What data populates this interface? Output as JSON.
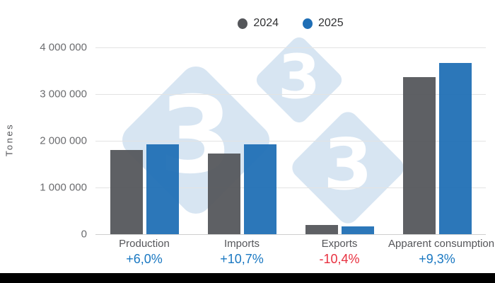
{
  "page": {
    "background": "#ffffff",
    "footer_bar_color": "#000000"
  },
  "watermark": {
    "text": "3",
    "color": "#D7E5F2"
  },
  "y_axis": {
    "label": "Tones",
    "ticks": [
      "4 000 000",
      "3 000 000",
      "2 000 000",
      "1 000 000",
      "0"
    ],
    "max": 4000000
  },
  "chart_data": {
    "type": "bar",
    "title": "",
    "xlabel": "",
    "ylabel": "Tones",
    "ylim": [
      0,
      4000000
    ],
    "grid": true,
    "legend_position": "top-center",
    "categories": [
      "Production",
      "Imports",
      "Exports",
      "Apparent consumption"
    ],
    "series": [
      {
        "name": "2024",
        "color": "#54565A",
        "values": [
          1810000,
          1735000,
          193000,
          3360000
        ]
      },
      {
        "name": "2025",
        "color": "#1F6EB5",
        "values": [
          1920000,
          1920000,
          173000,
          3672000
        ]
      }
    ],
    "change_labels": [
      {
        "text": "+6,0%",
        "color": "#1A78C2"
      },
      {
        "text": "+10,7%",
        "color": "#1A78C2"
      },
      {
        "text": "-10,4%",
        "color": "#E8303F"
      },
      {
        "text": "+9,3%",
        "color": "#1A78C2"
      }
    ]
  }
}
